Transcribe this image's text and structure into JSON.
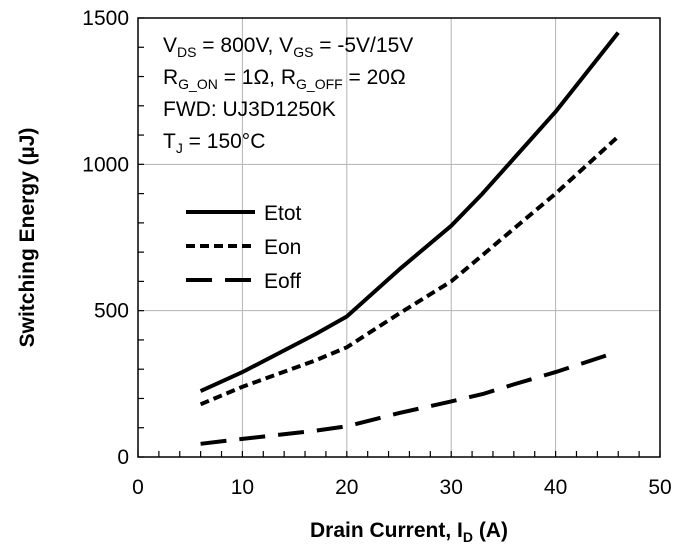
{
  "chart_data": {
    "type": "line",
    "title": "",
    "xlabel": {
      "main": "Drain Current, I",
      "sub": "D",
      "unit": " (A)"
    },
    "ylabel": "Switching Energy (µJ)",
    "xlim": [
      0,
      50
    ],
    "ylim": [
      0,
      1500
    ],
    "xticks": [
      0,
      10,
      20,
      30,
      40,
      50
    ],
    "yticks": [
      0,
      500,
      1000,
      1500
    ],
    "grid": true,
    "legend_position": "left",
    "annotations": [
      [
        {
          "t": "V"
        },
        {
          "t": "DS",
          "sub": true
        },
        {
          "t": " = 800V, V"
        },
        {
          "t": "GS",
          "sub": true
        },
        {
          "t": " = -5V/15V"
        }
      ],
      [
        {
          "t": "R"
        },
        {
          "t": "G_ON",
          "sub": true
        },
        {
          "t": " = 1Ω, R"
        },
        {
          "t": "G_OFF",
          "sub": true
        },
        {
          "t": " = 20Ω"
        }
      ],
      [
        {
          "t": "FWD: UJ3D1250K"
        }
      ],
      [
        {
          "t": "T"
        },
        {
          "t": "J",
          "sub": true
        },
        {
          "t": " = 150°C"
        }
      ]
    ],
    "series": [
      {
        "name": "Etot",
        "dash": "solid",
        "x": [
          6,
          10,
          17,
          20,
          25,
          30,
          33,
          36,
          40,
          46
        ],
        "y": [
          225,
          290,
          420,
          480,
          640,
          790,
          900,
          1020,
          1180,
          1450
        ]
      },
      {
        "name": "Eon",
        "dash": "short",
        "x": [
          6,
          10,
          17,
          20,
          25,
          30,
          33,
          36,
          40,
          46
        ],
        "y": [
          180,
          240,
          330,
          375,
          490,
          600,
          690,
          780,
          900,
          1095
        ]
      },
      {
        "name": "Eoff",
        "dash": "long",
        "x": [
          6,
          10,
          17,
          20,
          25,
          30,
          33,
          36,
          40,
          46
        ],
        "y": [
          45,
          62,
          90,
          105,
          150,
          190,
          215,
          248,
          290,
          360
        ]
      }
    ]
  }
}
